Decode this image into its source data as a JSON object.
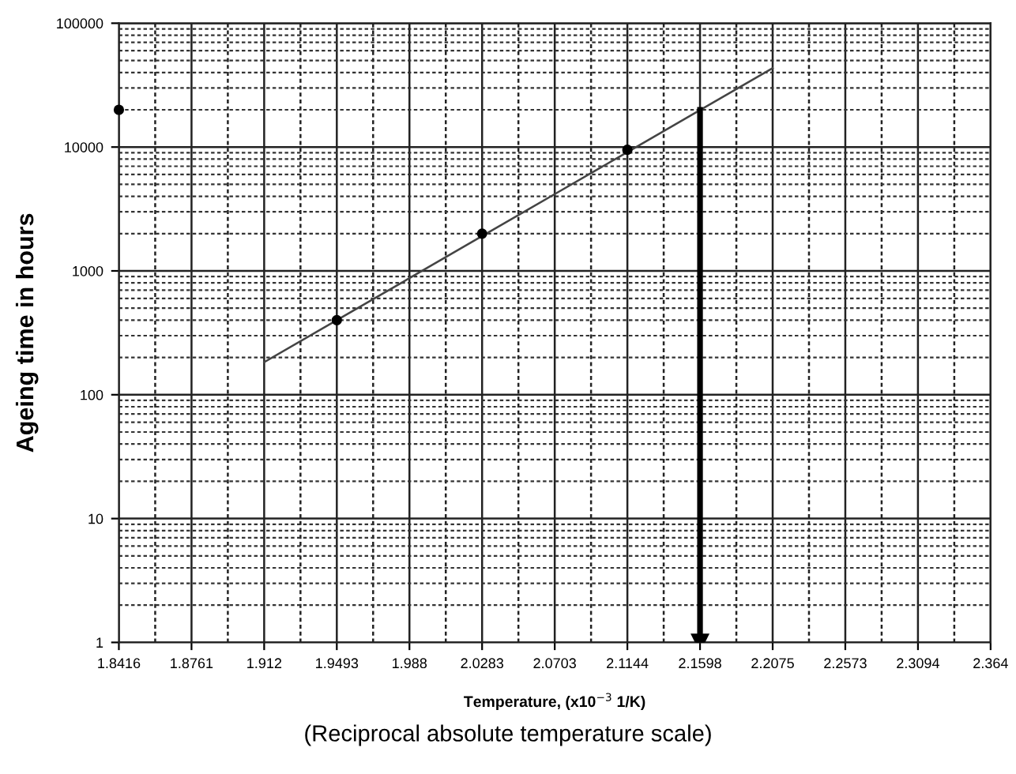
{
  "chart_data": {
    "type": "line",
    "xlabel": "Temperature, (x10$^{−3}$ 1/K)",
    "ylabel": "Ageing time in hours",
    "annotations": [
      "(Reciprocal absolute temperature scale)"
    ],
    "categories": [
      "1.8416",
      "1.8761",
      "1.912",
      "1.9493",
      "1.988",
      "2.0283",
      "2.0703",
      "2.1144",
      "2.1598",
      "2.2075",
      "2.2573",
      "2.3094",
      "2.364"
    ],
    "series": [
      {
        "color": "#444444",
        "values": [
          null,
          null,
          183,
          400,
          874,
          1910,
          4170,
          9100,
          19900,
          43400,
          null,
          null,
          null
        ]
      },
      {
        "type": "scatter",
        "color": "#000000",
        "x": [
          "1.8416",
          "1.9493",
          "2.0283",
          "2.1144"
        ],
        "values": [
          20000,
          400,
          2000,
          9500
        ]
      },
      {
        "color": "#000000",
        "marker": "triangle",
        "x": [
          "2.1598",
          "2.1598"
        ],
        "values": [
          20000,
          1
        ]
      }
    ],
    "log": "y",
    "ylim": [
      1,
      100000
    ],
    "yticks": [
      1,
      10,
      100,
      1000,
      10000,
      100000
    ],
    "grid": true,
    "legend": false
  }
}
